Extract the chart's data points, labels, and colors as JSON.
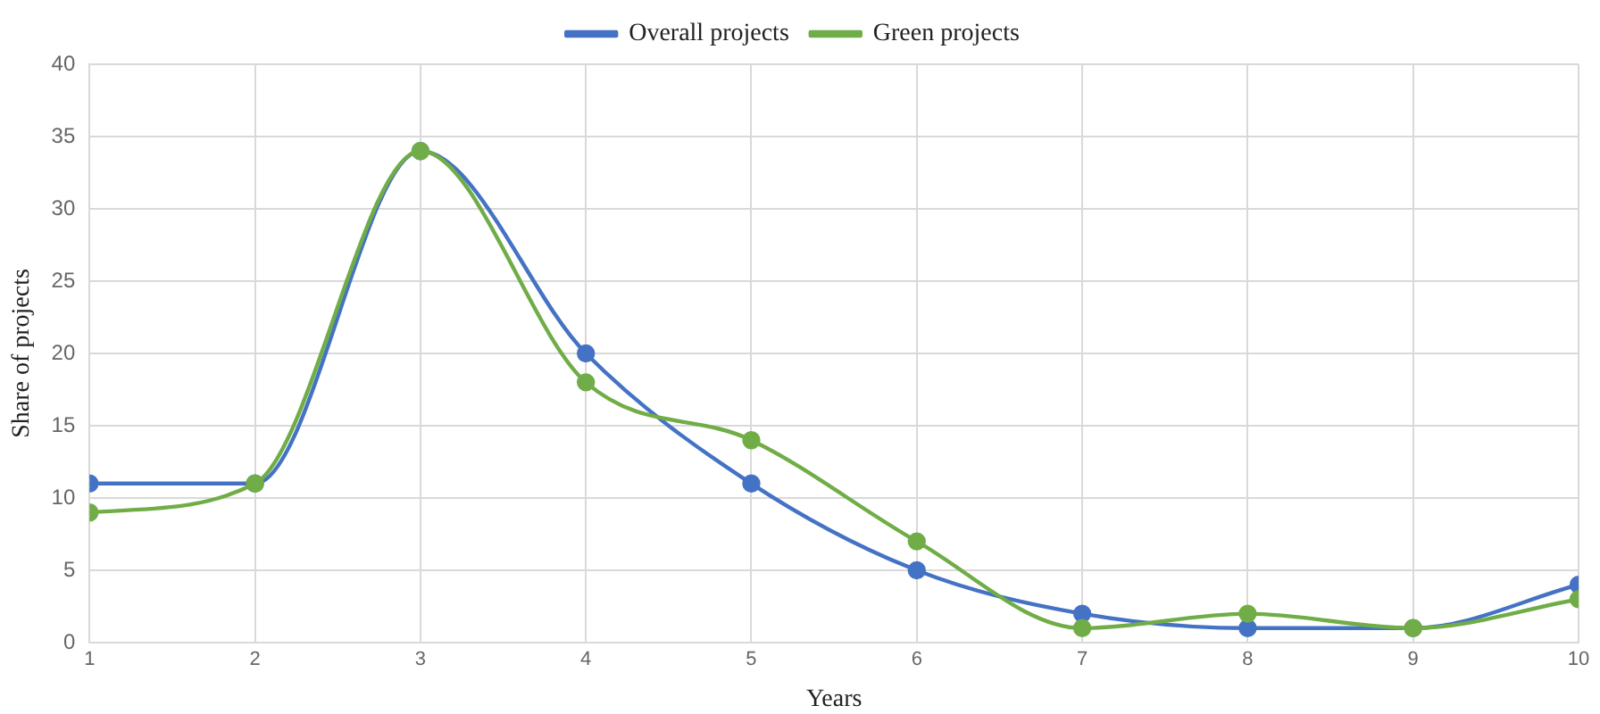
{
  "chart_data": {
    "type": "line",
    "xlabel": "Years",
    "ylabel": "Share of projects",
    "x": [
      1,
      2,
      3,
      4,
      5,
      6,
      7,
      8,
      9,
      10
    ],
    "series": [
      {
        "name": "Overall projects",
        "color": "#4472c4",
        "values": [
          11,
          11,
          34,
          20,
          11,
          5,
          2,
          1,
          1,
          4
        ]
      },
      {
        "name": "Green projects",
        "color": "#70ad47",
        "values": [
          9,
          11,
          34,
          18,
          14,
          7,
          1,
          2,
          1,
          3
        ]
      }
    ],
    "xlim": [
      1,
      10
    ],
    "xticks": [
      1,
      2,
      3,
      4,
      5,
      6,
      7,
      8,
      9,
      10
    ],
    "ylim": [
      0,
      40
    ],
    "yticks": [
      0,
      5,
      10,
      15,
      20,
      25,
      30,
      35,
      40
    ],
    "grid": true,
    "legend": "top",
    "marker": "circle",
    "line_style": "solid"
  }
}
